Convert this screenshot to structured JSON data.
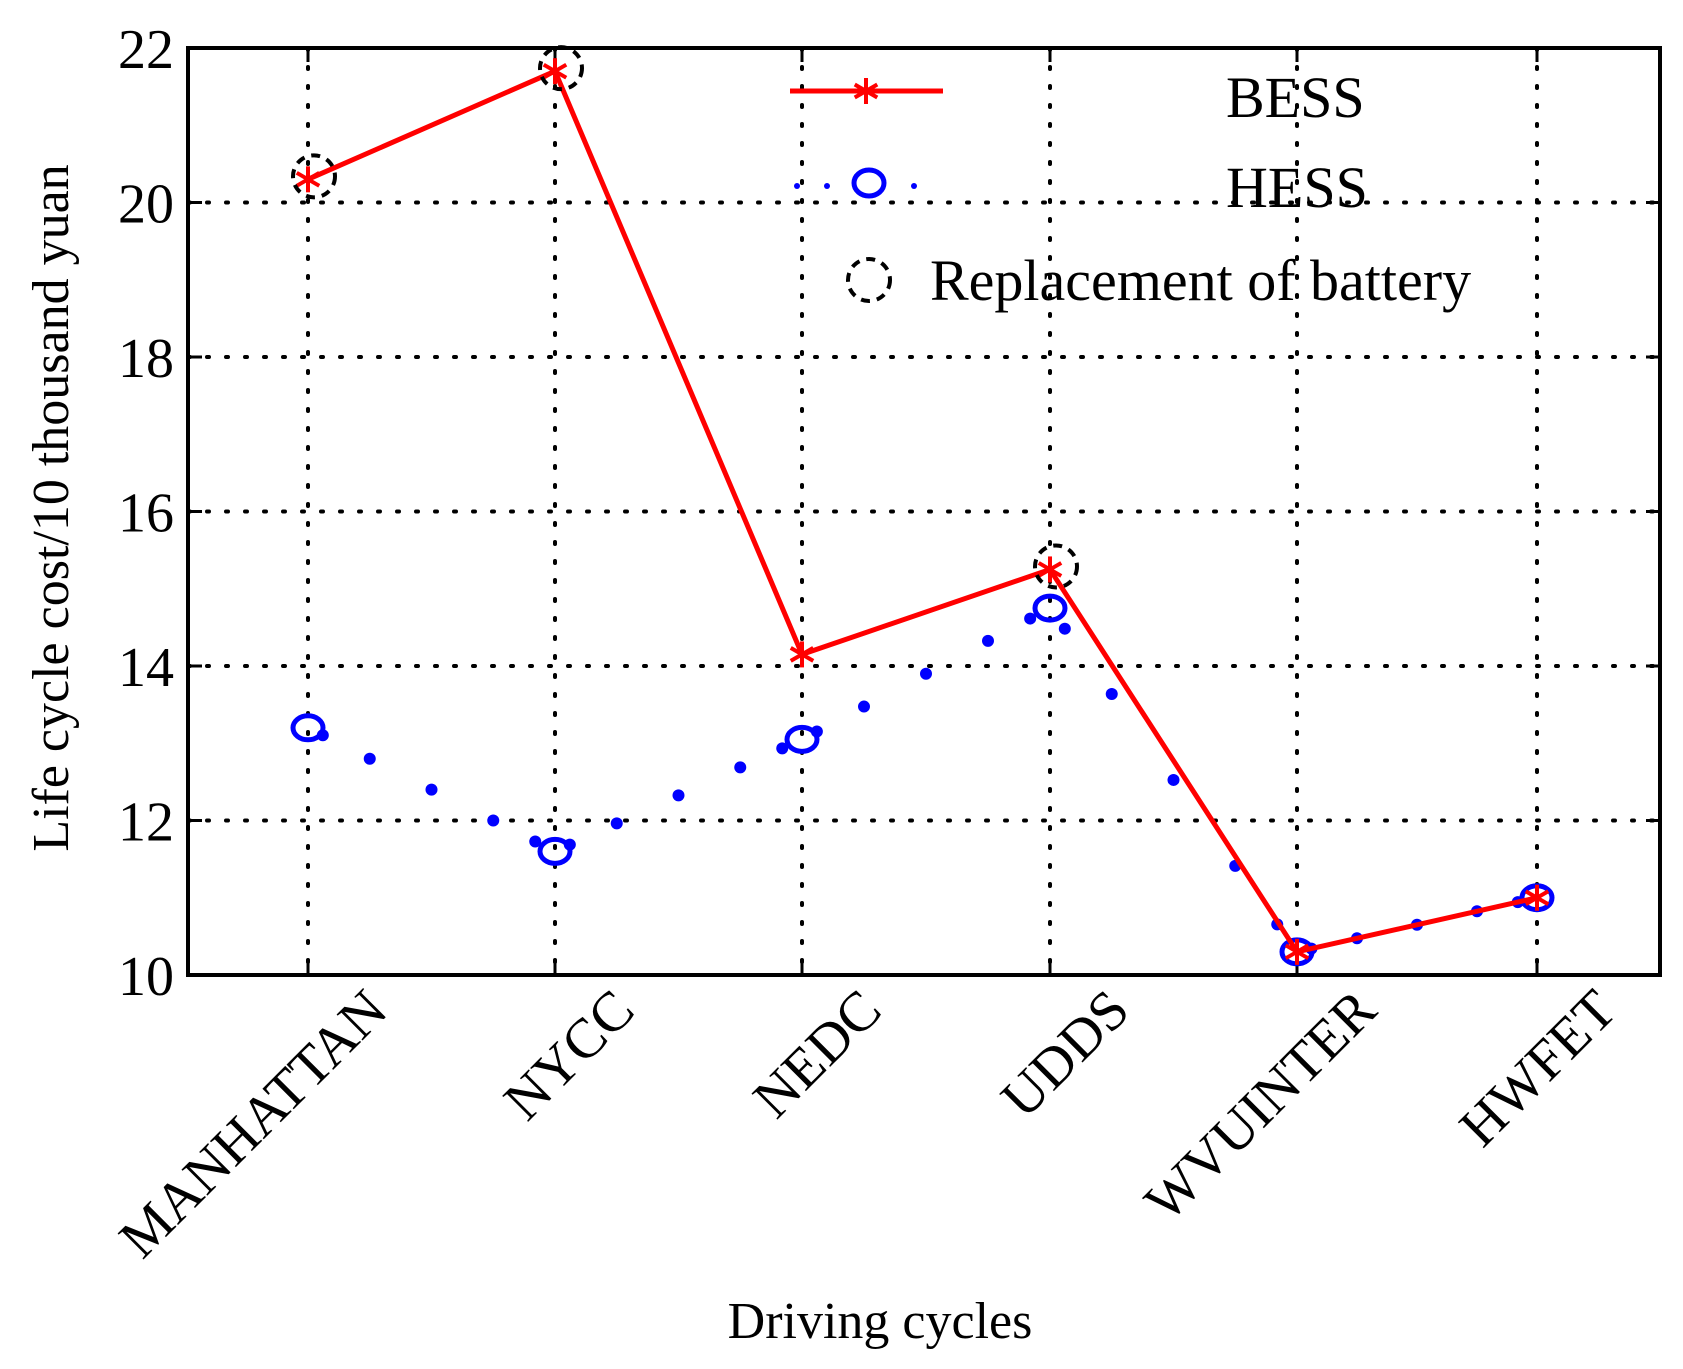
{
  "chart_data": {
    "type": "line",
    "title": "",
    "xlabel": "Driving cycles",
    "ylabel": "Life cycle cost/10 thousand yuan",
    "categories": [
      "MANHATTAN",
      "NYCC",
      "NEDC",
      "UDDS",
      "WVUINTER",
      "HWFET"
    ],
    "ylim": [
      10,
      22
    ],
    "yticks": [
      10,
      12,
      14,
      16,
      18,
      20,
      22
    ],
    "grid": true,
    "legend_position": "top-right",
    "series": [
      {
        "name": "BESS",
        "values": [
          20.3,
          21.7,
          14.15,
          15.25,
          10.3,
          11.0
        ],
        "color": "#ff0000",
        "line": "solid",
        "marker": "asterisk"
      },
      {
        "name": "HESS",
        "values": [
          13.2,
          11.6,
          13.05,
          14.75,
          10.3,
          11.0
        ],
        "color": "#0000ff",
        "line": "dotted",
        "marker": "circle"
      }
    ],
    "annotations": {
      "name": "Replacement of battery",
      "marker": "dashed-circle",
      "color": "#000000",
      "categories": [
        "MANHATTAN",
        "NYCC",
        "UDDS"
      ]
    }
  }
}
